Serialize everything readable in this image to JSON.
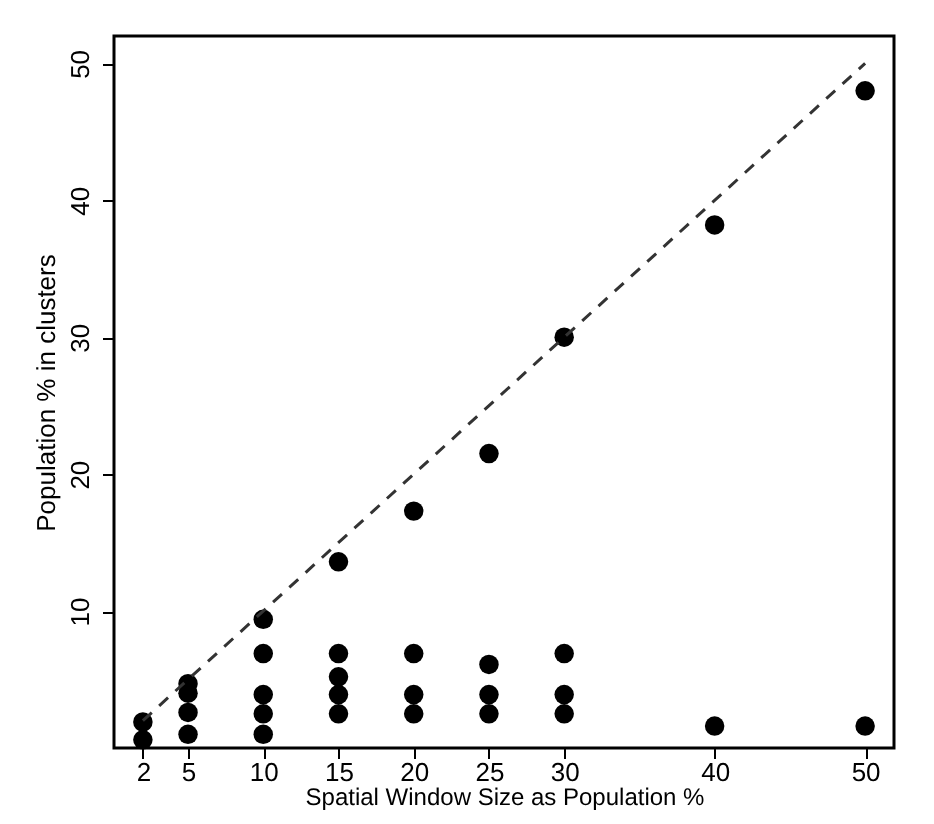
{
  "chart_data": {
    "type": "scatter",
    "xlabel": "Spatial Window Size as Population %",
    "ylabel": "Population % in clusters",
    "xlim": [
      0.08,
      51.92
    ],
    "ylim": [
      0,
      52
    ],
    "xticks": [
      2,
      5,
      10,
      15,
      20,
      25,
      30,
      40,
      50
    ],
    "yticks": [
      10,
      20,
      30,
      40,
      50
    ],
    "grid": false,
    "marker": "circle",
    "series": [
      {
        "type": "scatter",
        "color": "#000000",
        "x": [
          2,
          2,
          5,
          5,
          5,
          5,
          10,
          10,
          10,
          10,
          10,
          15,
          15,
          15,
          15,
          15,
          20,
          20,
          20,
          20,
          25,
          25,
          25,
          25,
          30,
          30,
          30,
          30,
          40,
          40,
          50,
          50
        ],
        "values": [
          1.9,
          0.6,
          4.7,
          4.0,
          2.6,
          1.0,
          9.4,
          6.9,
          3.9,
          2.5,
          1.0,
          13.6,
          6.9,
          5.2,
          3.9,
          2.5,
          17.3,
          6.9,
          3.9,
          2.5,
          21.5,
          6.1,
          3.9,
          2.5,
          30.0,
          6.9,
          3.9,
          2.5,
          38.2,
          1.6,
          48.0,
          1.6
        ]
      },
      {
        "type": "line",
        "color": "#333333",
        "line_style": "dashed",
        "marker": "none",
        "x": [
          2,
          50
        ],
        "values": [
          2,
          50
        ]
      }
    ]
  }
}
